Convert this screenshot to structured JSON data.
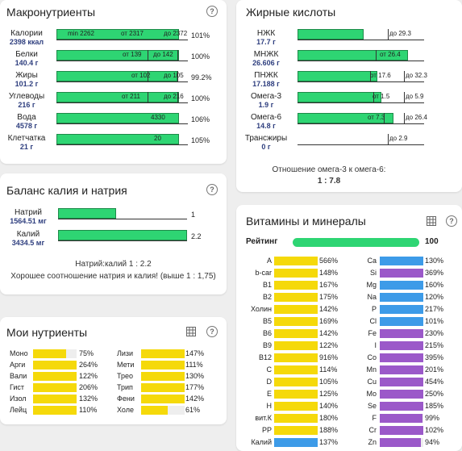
{
  "colors": {
    "green": "#2ed573",
    "yellow": "#f5d90a",
    "blue": "#3d9be8",
    "purple": "#9b59c9",
    "navy": "#2f3f7f"
  },
  "macros": {
    "title": "Макронутриенты",
    "rows": [
      {
        "name": "Калории",
        "value": "2398 ккал",
        "markers": [
          "min 2262",
          "от 2317",
          "до 2372"
        ],
        "pct": "101%",
        "fill": 1.01
      },
      {
        "name": "Белки",
        "value": "140.4 г",
        "markers": [
          "от 139",
          "до 142"
        ],
        "pct": "100%",
        "fill": 1.0
      },
      {
        "name": "Жиры",
        "value": "101.2 г",
        "markers": [
          "от 102",
          "до 105"
        ],
        "pct": "99.2%",
        "fill": 0.992
      },
      {
        "name": "Углеводы",
        "value": "216 г",
        "markers": [
          "от 211",
          "до 216"
        ],
        "pct": "100%",
        "fill": 1.0
      },
      {
        "name": "Вода",
        "value": "4578 г",
        "markers": [
          "4330"
        ],
        "pct": "106%",
        "fill": 1.06
      },
      {
        "name": "Клетчатка",
        "value": "21 г",
        "markers": [
          "20"
        ],
        "pct": "105%",
        "fill": 1.05
      }
    ]
  },
  "fatty": {
    "title": "Жирные кислоты",
    "rows": [
      {
        "name": "НЖК",
        "value": "17.7 г",
        "markers": [
          "до 29.3"
        ],
        "fill": 0.6
      },
      {
        "name": "МНЖК",
        "value": "26.606 г",
        "markers": [
          "от 26.4"
        ],
        "fill": 1.0
      },
      {
        "name": "ПНЖК",
        "value": "17.188 г",
        "markers": [
          "от 17.6",
          "до 32.3"
        ],
        "fill": 0.72
      },
      {
        "name": "Омега-3",
        "value": "1.9 г",
        "markers": [
          "от 1.5",
          "до 5.9"
        ],
        "fill": 0.76
      },
      {
        "name": "Омега-6",
        "value": "14.8 г",
        "markers": [
          "от 7.3",
          "до 26.4"
        ],
        "fill": 0.87
      },
      {
        "name": "Трансжиры",
        "value": "0 г",
        "markers": [
          "до 2.9"
        ],
        "fill": 0
      }
    ],
    "ratio_label": "Отношение омега-3 к омега-6:",
    "ratio_value": "1 : 7.8"
  },
  "balance": {
    "title": "Баланс калия и натрия",
    "rows": [
      {
        "name": "Натрий",
        "value": "1564.51 мг",
        "ratio": "1",
        "fill": 0.45
      },
      {
        "name": "Калий",
        "value": "3434.5 мг",
        "ratio": "2.2",
        "fill": 1.0
      }
    ],
    "ratio_text": "Натрий:калий 1 : 2.2",
    "note": "Хорошее соотношение натрия и калия! (выше 1 : 1,75)"
  },
  "my_nutrients": {
    "title": "Мои нутриенты",
    "left": [
      {
        "name": "Моно",
        "pct": "75%",
        "fill": 0.75
      },
      {
        "name": "Арги",
        "pct": "264%",
        "fill": 1
      },
      {
        "name": "Вали",
        "pct": "122%",
        "fill": 1
      },
      {
        "name": "Гист",
        "pct": "206%",
        "fill": 1
      },
      {
        "name": "Изол",
        "pct": "132%",
        "fill": 1
      },
      {
        "name": "Лейц",
        "pct": "110%",
        "fill": 1
      }
    ],
    "right": [
      {
        "name": "Лизи",
        "pct": "147%",
        "fill": 1
      },
      {
        "name": "Мети",
        "pct": "111%",
        "fill": 1
      },
      {
        "name": "Трео",
        "pct": "130%",
        "fill": 1
      },
      {
        "name": "Трип",
        "pct": "177%",
        "fill": 1
      },
      {
        "name": "Фени",
        "pct": "142%",
        "fill": 1
      },
      {
        "name": "Холе",
        "pct": "61%",
        "fill": 0.61
      }
    ]
  },
  "vitamins": {
    "title": "Витамины и минералы",
    "rating_label": "Рейтинг",
    "rating_value": "100",
    "rating_fill": 1.0,
    "left": [
      {
        "name": "A",
        "pct": "566%",
        "fill": 1,
        "color": "yellow"
      },
      {
        "name": "b-car",
        "pct": "148%",
        "fill": 1,
        "color": "yellow"
      },
      {
        "name": "B1",
        "pct": "167%",
        "fill": 1,
        "color": "yellow"
      },
      {
        "name": "B2",
        "pct": "175%",
        "fill": 1,
        "color": "yellow"
      },
      {
        "name": "Холин",
        "pct": "142%",
        "fill": 1,
        "color": "yellow"
      },
      {
        "name": "B5",
        "pct": "169%",
        "fill": 1,
        "color": "yellow"
      },
      {
        "name": "B6",
        "pct": "142%",
        "fill": 1,
        "color": "yellow"
      },
      {
        "name": "B9",
        "pct": "122%",
        "fill": 1,
        "color": "yellow"
      },
      {
        "name": "B12",
        "pct": "916%",
        "fill": 1,
        "color": "yellow"
      },
      {
        "name": "C",
        "pct": "114%",
        "fill": 1,
        "color": "yellow"
      },
      {
        "name": "D",
        "pct": "105%",
        "fill": 1,
        "color": "yellow"
      },
      {
        "name": "E",
        "pct": "125%",
        "fill": 1,
        "color": "yellow"
      },
      {
        "name": "H",
        "pct": "140%",
        "fill": 1,
        "color": "yellow"
      },
      {
        "name": "вит.К",
        "pct": "180%",
        "fill": 1,
        "color": "yellow"
      },
      {
        "name": "PP",
        "pct": "188%",
        "fill": 1,
        "color": "yellow"
      },
      {
        "name": "Калий",
        "pct": "137%",
        "fill": 1,
        "color": "blue"
      }
    ],
    "right": [
      {
        "name": "Ca",
        "pct": "130%",
        "fill": 1,
        "color": "blue"
      },
      {
        "name": "Si",
        "pct": "369%",
        "fill": 1,
        "color": "purple"
      },
      {
        "name": "Mg",
        "pct": "160%",
        "fill": 1,
        "color": "blue"
      },
      {
        "name": "Na",
        "pct": "120%",
        "fill": 1,
        "color": "blue"
      },
      {
        "name": "P",
        "pct": "217%",
        "fill": 1,
        "color": "blue"
      },
      {
        "name": "Cl",
        "pct": "101%",
        "fill": 1,
        "color": "blue"
      },
      {
        "name": "Fe",
        "pct": "230%",
        "fill": 1,
        "color": "purple"
      },
      {
        "name": "I",
        "pct": "215%",
        "fill": 1,
        "color": "purple"
      },
      {
        "name": "Co",
        "pct": "395%",
        "fill": 1,
        "color": "purple"
      },
      {
        "name": "Mn",
        "pct": "201%",
        "fill": 1,
        "color": "purple"
      },
      {
        "name": "Cu",
        "pct": "454%",
        "fill": 1,
        "color": "purple"
      },
      {
        "name": "Mo",
        "pct": "250%",
        "fill": 1,
        "color": "purple"
      },
      {
        "name": "Se",
        "pct": "185%",
        "fill": 1,
        "color": "purple"
      },
      {
        "name": "F",
        "pct": "99%",
        "fill": 0.99,
        "color": "purple"
      },
      {
        "name": "Cr",
        "pct": "102%",
        "fill": 1,
        "color": "purple"
      },
      {
        "name": "Zn",
        "pct": "94%",
        "fill": 0.94,
        "color": "purple"
      }
    ]
  },
  "icons": {
    "help": "help-circle-icon",
    "table": "table-grid-icon"
  }
}
